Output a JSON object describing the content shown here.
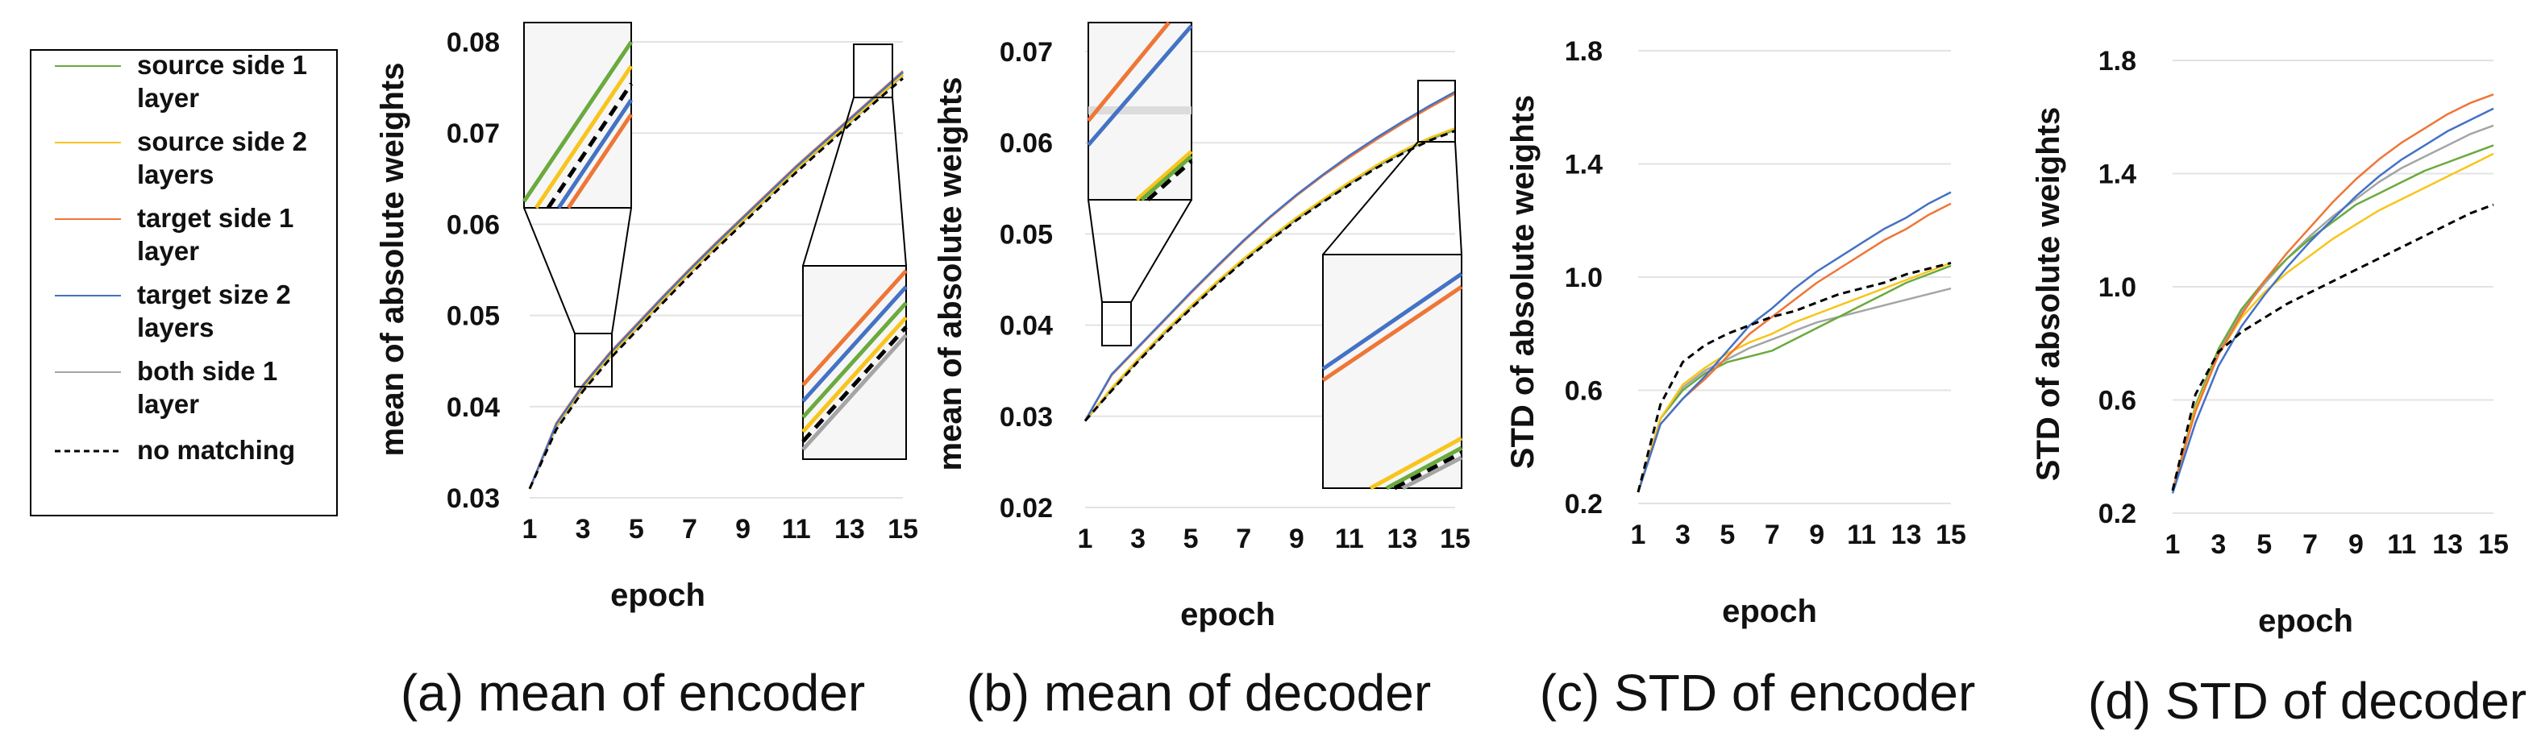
{
  "legend": [
    {
      "id": "s1",
      "lines": [
        "source side 1",
        "layer"
      ],
      "color": "#6aaa3e",
      "dash": false
    },
    {
      "id": "s2",
      "lines": [
        "source side 2",
        "layers"
      ],
      "color": "#f7c51c",
      "dash": false
    },
    {
      "id": "t1",
      "lines": [
        "target side 1",
        "layer"
      ],
      "color": "#ee7637",
      "dash": false
    },
    {
      "id": "t2",
      "lines": [
        "target size 2",
        "layers"
      ],
      "color": "#4472c4",
      "dash": false
    },
    {
      "id": "b1",
      "lines": [
        "both side   1",
        "layer"
      ],
      "color": "#a5a5a5",
      "dash": false
    },
    {
      "id": "nm",
      "lines": [
        "no matching"
      ],
      "color": "#000000",
      "dash": true
    }
  ],
  "chart_data": [
    {
      "type": "line",
      "caption": "(a) mean of encoder",
      "xlabel": "epoch",
      "ylabel": "mean of absolute weights",
      "x": [
        1,
        2,
        3,
        4,
        5,
        6,
        7,
        8,
        9,
        10,
        11,
        12,
        13,
        14,
        15
      ],
      "xticks": [
        "1",
        "3",
        "5",
        "7",
        "9",
        "11",
        "13",
        "15"
      ],
      "ylim": [
        0.03,
        0.08
      ],
      "yticks": [
        "0.03",
        "0.04",
        "0.05",
        "0.06",
        "0.07",
        "0.08"
      ],
      "series": [
        {
          "name": "source side 1 layer",
          "values": [
            0.031,
            0.038,
            0.0422,
            0.0457,
            0.0488,
            0.0519,
            0.0549,
            0.0578,
            0.0606,
            0.0634,
            0.0662,
            0.0688,
            0.0714,
            0.074,
            0.0766
          ]
        },
        {
          "name": "source side 2 layers",
          "values": [
            0.031,
            0.0378,
            0.042,
            0.0455,
            0.0486,
            0.0517,
            0.0547,
            0.0576,
            0.0604,
            0.0632,
            0.066,
            0.0686,
            0.0712,
            0.0738,
            0.0764
          ]
        },
        {
          "name": "target side 1 layer",
          "values": [
            0.031,
            0.0382,
            0.0424,
            0.0459,
            0.049,
            0.0521,
            0.0551,
            0.058,
            0.0608,
            0.0636,
            0.0664,
            0.069,
            0.0716,
            0.0742,
            0.0768
          ]
        },
        {
          "name": "target size 2 layers",
          "values": [
            0.031,
            0.0381,
            0.0423,
            0.0458,
            0.0489,
            0.052,
            0.055,
            0.0579,
            0.0607,
            0.0635,
            0.0663,
            0.0689,
            0.0715,
            0.0741,
            0.0767
          ]
        },
        {
          "name": "both side 1 layer",
          "values": [
            0.031,
            0.0377,
            0.0419,
            0.0454,
            0.0485,
            0.0516,
            0.0546,
            0.0575,
            0.0603,
            0.0631,
            0.0659,
            0.0685,
            0.0711,
            0.0737,
            0.0763
          ]
        },
        {
          "name": "no matching",
          "values": [
            0.031,
            0.0375,
            0.0417,
            0.0452,
            0.0483,
            0.0514,
            0.0544,
            0.0573,
            0.0601,
            0.0629,
            0.0657,
            0.0683,
            0.0709,
            0.0735,
            0.076
          ]
        }
      ]
    },
    {
      "type": "line",
      "caption": "(b) mean of decoder",
      "xlabel": "epoch",
      "ylabel": "mean of absolute weights",
      "x": [
        1,
        2,
        3,
        4,
        5,
        6,
        7,
        8,
        9,
        10,
        11,
        12,
        13,
        14,
        15
      ],
      "xticks": [
        "1",
        "3",
        "5",
        "7",
        "9",
        "11",
        "13",
        "15"
      ],
      "ylim": [
        0.02,
        0.07
      ],
      "yticks": [
        "0.02",
        "0.03",
        "0.04",
        "0.05",
        "0.06",
        "0.07"
      ],
      "series": [
        {
          "name": "source side 1 layer",
          "values": [
            0.0295,
            0.033,
            0.0362,
            0.0392,
            0.042,
            0.0447,
            0.0472,
            0.0495,
            0.0517,
            0.0537,
            0.0556,
            0.0574,
            0.059,
            0.0604,
            0.0615
          ]
        },
        {
          "name": "source side 2 layers",
          "values": [
            0.0295,
            0.0331,
            0.0363,
            0.0393,
            0.0421,
            0.0448,
            0.0473,
            0.0496,
            0.0518,
            0.0538,
            0.0557,
            0.0575,
            0.0591,
            0.0605,
            0.0616
          ]
        },
        {
          "name": "target side 1 layer",
          "values": [
            0.0295,
            0.0345,
            0.0375,
            0.0405,
            0.0435,
            0.0464,
            0.0492,
            0.0518,
            0.0542,
            0.0564,
            0.0584,
            0.0603,
            0.0621,
            0.0638,
            0.0654
          ]
        },
        {
          "name": "target size 2 layers",
          "values": [
            0.0295,
            0.0346,
            0.0376,
            0.0406,
            0.0436,
            0.0465,
            0.0493,
            0.0519,
            0.0543,
            0.0565,
            0.0586,
            0.0605,
            0.0623,
            0.064,
            0.0656
          ]
        },
        {
          "name": "both side 1 layer",
          "values": [
            0.0295,
            0.0329,
            0.0361,
            0.0391,
            0.0419,
            0.0446,
            0.0471,
            0.0494,
            0.0516,
            0.0536,
            0.0555,
            0.0573,
            0.0589,
            0.0603,
            0.0614
          ]
        },
        {
          "name": "no matching",
          "values": [
            0.0295,
            0.0328,
            0.036,
            0.039,
            0.0418,
            0.0445,
            0.047,
            0.0493,
            0.0515,
            0.0535,
            0.0554,
            0.0572,
            0.0588,
            0.0602,
            0.0613
          ]
        }
      ]
    },
    {
      "type": "line",
      "caption": "(c) STD of encoder",
      "xlabel": "epoch",
      "ylabel": "STD of absolute weights",
      "x": [
        1,
        2,
        3,
        4,
        5,
        6,
        7,
        8,
        9,
        10,
        11,
        12,
        13,
        14,
        15
      ],
      "xticks": [
        "1",
        "3",
        "5",
        "7",
        "9",
        "11",
        "13",
        "15"
      ],
      "ylim": [
        0.2,
        1.8
      ],
      "yticks": [
        "0.2",
        "0.6",
        "1.0",
        "1.4",
        "1.8"
      ],
      "series": [
        {
          "name": "source side 1 layer",
          "values": [
            0.24,
            0.5,
            0.6,
            0.66,
            0.7,
            0.72,
            0.74,
            0.78,
            0.82,
            0.86,
            0.9,
            0.94,
            0.98,
            1.01,
            1.04
          ]
        },
        {
          "name": "source side 2 layers",
          "values": [
            0.24,
            0.5,
            0.62,
            0.68,
            0.73,
            0.77,
            0.8,
            0.84,
            0.87,
            0.9,
            0.93,
            0.96,
            0.99,
            1.02,
            1.05
          ]
        },
        {
          "name": "target side 1 layer",
          "values": [
            0.24,
            0.48,
            0.57,
            0.64,
            0.72,
            0.8,
            0.86,
            0.92,
            0.98,
            1.03,
            1.08,
            1.13,
            1.17,
            1.22,
            1.26
          ]
        },
        {
          "name": "target size 2 layers",
          "values": [
            0.24,
            0.48,
            0.57,
            0.65,
            0.74,
            0.83,
            0.89,
            0.96,
            1.02,
            1.07,
            1.12,
            1.17,
            1.21,
            1.26,
            1.3
          ]
        },
        {
          "name": "both side 1 layer",
          "values": [
            0.24,
            0.5,
            0.61,
            0.67,
            0.71,
            0.75,
            0.78,
            0.81,
            0.84,
            0.86,
            0.88,
            0.9,
            0.92,
            0.94,
            0.96
          ]
        },
        {
          "name": "no matching",
          "values": [
            0.24,
            0.55,
            0.7,
            0.76,
            0.8,
            0.83,
            0.86,
            0.88,
            0.91,
            0.94,
            0.96,
            0.98,
            1.01,
            1.03,
            1.05
          ]
        }
      ]
    },
    {
      "type": "line",
      "caption": "(d) STD of decoder",
      "xlabel": "epoch",
      "ylabel": "STD of absolute weights",
      "x": [
        1,
        2,
        3,
        4,
        5,
        6,
        7,
        8,
        9,
        10,
        11,
        12,
        13,
        14,
        15
      ],
      "xticks": [
        "1",
        "3",
        "5",
        "7",
        "9",
        "11",
        "13",
        "15"
      ],
      "ylim": [
        0.2,
        1.8
      ],
      "yticks": [
        "0.2",
        "0.6",
        "1.0",
        "1.4",
        "1.8"
      ],
      "series": [
        {
          "name": "source side 1 layer",
          "values": [
            0.28,
            0.58,
            0.78,
            0.92,
            1.02,
            1.1,
            1.17,
            1.23,
            1.29,
            1.33,
            1.37,
            1.41,
            1.44,
            1.47,
            1.5
          ]
        },
        {
          "name": "source side 2 layers",
          "values": [
            0.28,
            0.57,
            0.76,
            0.89,
            0.98,
            1.05,
            1.11,
            1.17,
            1.22,
            1.27,
            1.31,
            1.35,
            1.39,
            1.43,
            1.47
          ]
        },
        {
          "name": "target side 1 layer",
          "values": [
            0.28,
            0.56,
            0.76,
            0.9,
            1.02,
            1.12,
            1.21,
            1.3,
            1.38,
            1.45,
            1.51,
            1.56,
            1.61,
            1.65,
            1.68
          ]
        },
        {
          "name": "target size 2 layers",
          "values": [
            0.27,
            0.52,
            0.72,
            0.86,
            0.97,
            1.07,
            1.16,
            1.24,
            1.32,
            1.39,
            1.45,
            1.5,
            1.55,
            1.59,
            1.63
          ]
        },
        {
          "name": "both side 1 layer",
          "values": [
            0.28,
            0.57,
            0.77,
            0.91,
            1.01,
            1.1,
            1.18,
            1.25,
            1.31,
            1.37,
            1.42,
            1.46,
            1.5,
            1.54,
            1.57
          ]
        },
        {
          "name": "no matching",
          "values": [
            0.28,
            0.62,
            0.77,
            0.84,
            0.89,
            0.94,
            0.98,
            1.02,
            1.06,
            1.1,
            1.14,
            1.18,
            1.22,
            1.26,
            1.29
          ]
        }
      ]
    }
  ]
}
